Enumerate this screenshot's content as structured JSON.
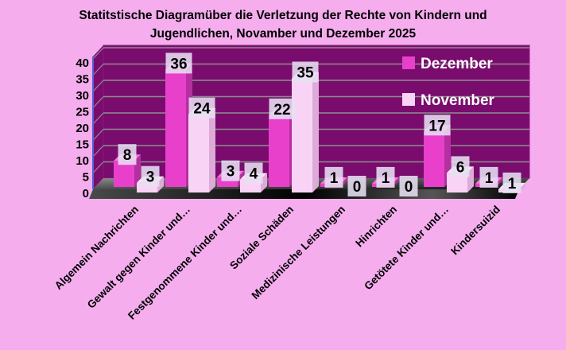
{
  "background_color": "#f5adee",
  "title": {
    "line1": "Statitstische Diagramüber die Verletzung der Rechte von Kindern und",
    "line2": "Jugendlichen, Novamber und Dezember 2025"
  },
  "chart_data": {
    "type": "bar",
    "projection": "3d-clustered-column",
    "title": "Statitstische Diagramüber die Verletzung der Rechte von Kindern und Jugendlichen, Novamber und Dezember 2025",
    "categories": [
      "Algemein Nachrichten",
      "Gewalt gegen Kinder und…",
      "Festgenommene Kinder und…",
      "Soziale Schäden",
      "Medizinische Leistungen",
      "Hinrichten",
      "Getötete Kinder und…",
      "Kindersuizid"
    ],
    "series": [
      {
        "name": "Dezember",
        "values": [
          8,
          36,
          3,
          22,
          1,
          1,
          17,
          1
        ],
        "color": "#e840cb"
      },
      {
        "name": "November",
        "values": [
          3,
          24,
          4,
          35,
          0,
          0,
          6,
          1
        ],
        "color": "#f9d3f5"
      }
    ],
    "data_labels_shown": true,
    "yticks": [
      0,
      5,
      10,
      15,
      20,
      25,
      30,
      35,
      40
    ],
    "ylim": [
      0,
      40
    ],
    "grid": true,
    "legend_position": "top-right-inside",
    "style": {
      "background": "#f5adee",
      "wall_color": "#7a0c6e",
      "wall_top_edge": "#8d1380",
      "gridline_color": "#8e8e8e",
      "dezember_faces": {
        "front": "#e840cb",
        "top": "#f377dc",
        "side": "#b52fa0"
      },
      "november_faces": {
        "front": "#f9d3f5",
        "top": "#fce8fb",
        "side": "#dcabd7"
      },
      "value_label_bg": "#e6dff1",
      "value_label_text": "#000000",
      "legend_text_color": "#ffffff",
      "axis_text_color": "#000000",
      "floor_light": "#8a8a8a",
      "floor_dark": "#101010",
      "slab_dark": "#000000",
      "left_edge_color": "#4f63d2"
    }
  }
}
